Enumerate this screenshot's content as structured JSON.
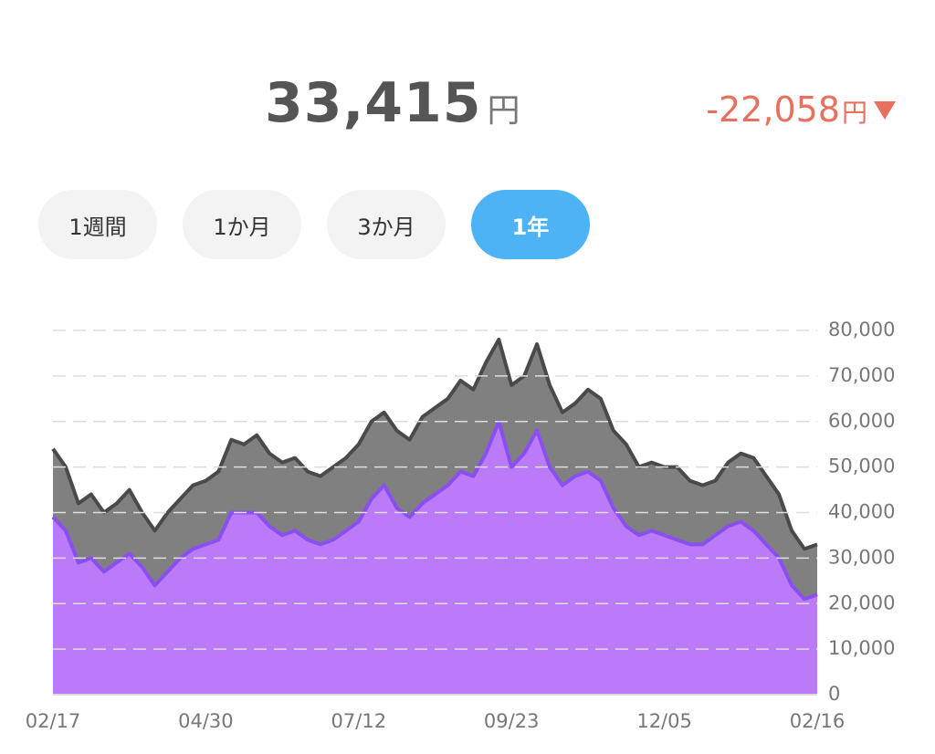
{
  "header": {
    "amount": "33,415",
    "amount_unit": "円",
    "change": "-22,058",
    "change_unit": "円"
  },
  "tabs": [
    "1週間",
    "1か月",
    "3か月",
    "1年"
  ],
  "active_tab": 3,
  "chart_data": {
    "type": "area",
    "categories": [
      "02/17",
      null,
      null,
      null,
      null,
      null,
      null,
      null,
      null,
      null,
      null,
      null,
      "04/30",
      null,
      null,
      null,
      null,
      null,
      null,
      null,
      null,
      null,
      null,
      null,
      "07/12",
      null,
      null,
      null,
      null,
      null,
      null,
      null,
      null,
      null,
      null,
      null,
      "09/23",
      null,
      null,
      null,
      null,
      null,
      null,
      null,
      null,
      null,
      null,
      null,
      "12/05",
      null,
      null,
      null,
      null,
      null,
      null,
      null,
      null,
      null,
      null,
      null,
      "02/16"
    ],
    "series": [
      {
        "color": "#808080",
        "line_color": "#4a4a4a",
        "values": [
          54000,
          50000,
          42000,
          44000,
          40000,
          42000,
          45000,
          40000,
          36000,
          40000,
          43000,
          46000,
          47000,
          49000,
          56000,
          55000,
          57000,
          53000,
          51000,
          52000,
          49000,
          48000,
          50000,
          52000,
          55000,
          60000,
          62000,
          58000,
          56000,
          61000,
          63000,
          65000,
          69000,
          67000,
          73000,
          78000,
          68000,
          70000,
          77000,
          68000,
          62000,
          64000,
          67000,
          65000,
          58000,
          55000,
          50000,
          51000,
          50000,
          50000,
          47000,
          46000,
          47000,
          51000,
          53000,
          52000,
          48000,
          44000,
          36000,
          32000,
          33000
        ]
      },
      {
        "color": "#bb7af7",
        "line_color": "#8a4ff0",
        "values": [
          39000,
          36000,
          29000,
          30000,
          27000,
          29000,
          31000,
          28000,
          24000,
          27000,
          30000,
          32000,
          33000,
          34000,
          40000,
          40000,
          40000,
          37000,
          35000,
          36000,
          34000,
          33000,
          34000,
          36000,
          38000,
          43000,
          46000,
          41000,
          39000,
          42000,
          44000,
          46000,
          49000,
          48000,
          53000,
          60000,
          50000,
          53000,
          58000,
          50000,
          46000,
          48000,
          49000,
          47000,
          41000,
          37000,
          35000,
          36000,
          35000,
          34000,
          33000,
          33000,
          35000,
          37000,
          38000,
          36000,
          33000,
          30000,
          24000,
          21000,
          22000
        ]
      }
    ],
    "ylim": [
      0,
      80000
    ],
    "yticks": [
      0,
      {
        "value": 10000,
        "label": "10,000"
      },
      {
        "value": 20000,
        "label": "20,000"
      },
      {
        "value": 30000,
        "label": "30,000"
      },
      {
        "value": 40000,
        "label": "40,000"
      },
      {
        "value": 50000,
        "label": "50,000"
      },
      {
        "value": 60000,
        "label": "60,000"
      },
      {
        "value": 70000,
        "label": "70,000"
      },
      {
        "value": 80000,
        "label": "80,000"
      }
    ],
    "grid": true
  }
}
